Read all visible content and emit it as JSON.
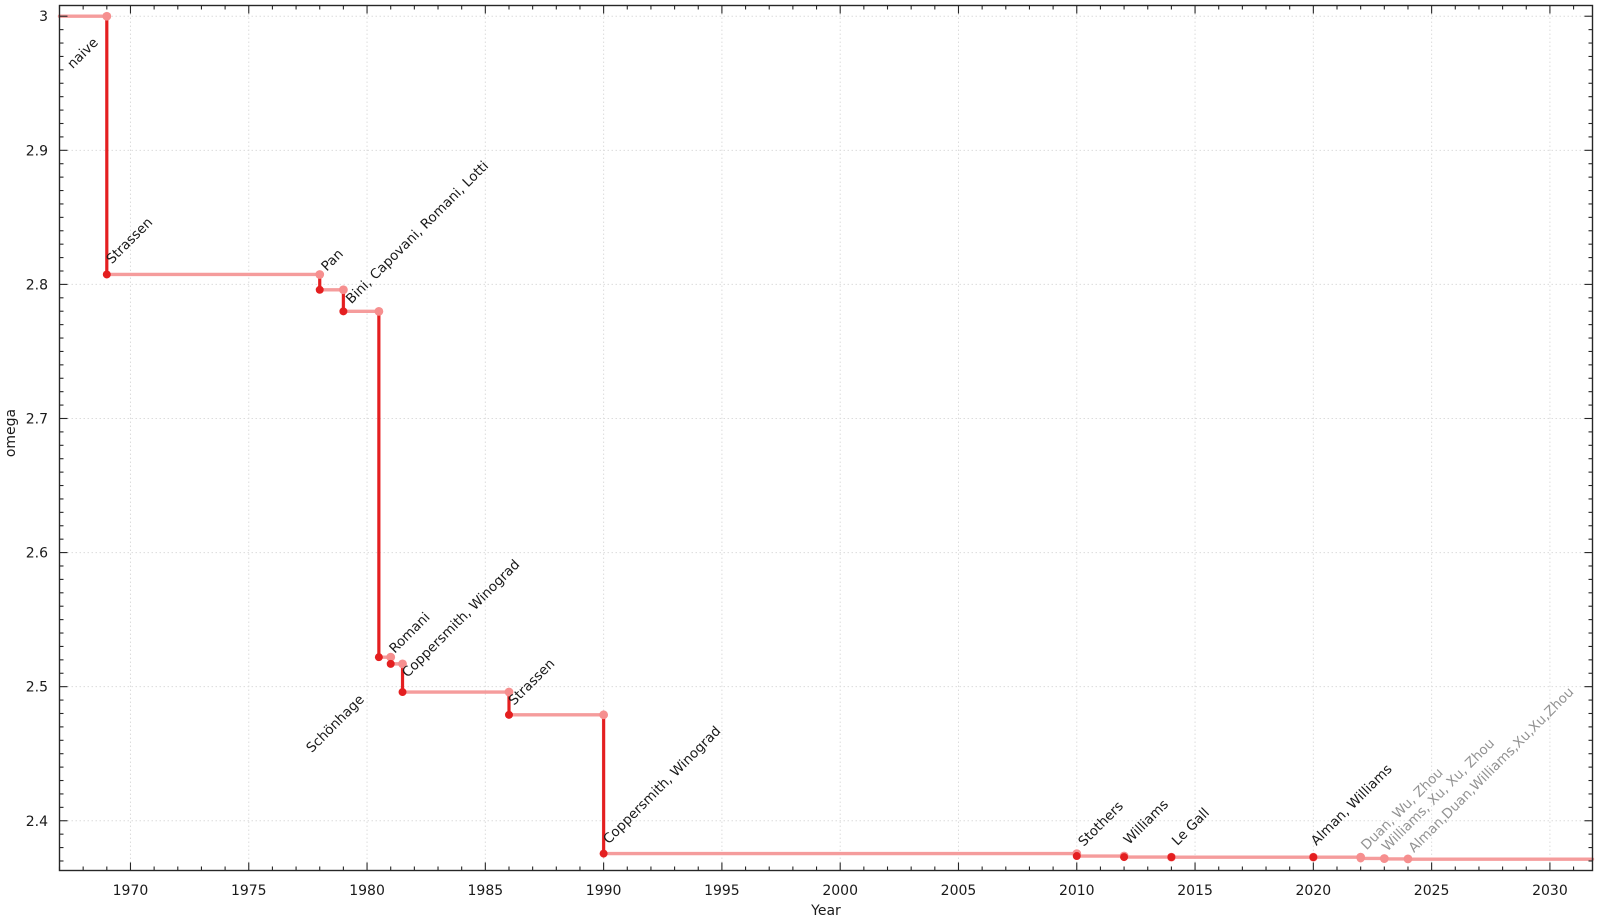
{
  "chart_data": {
    "type": "line",
    "subtype": "step-post",
    "title": "",
    "xlabel": "Year",
    "ylabel": "omega",
    "xlim": [
      1967.0,
      2031.8
    ],
    "ylim": [
      2.3629,
      3.008
    ],
    "grid": "major-dotted",
    "legend": "none",
    "x_major_ticks": [
      1970,
      1975,
      1980,
      1985,
      1990,
      1995,
      2000,
      2005,
      2010,
      2015,
      2020,
      2025,
      2030
    ],
    "x_tick_labels": [
      "1970",
      "1975",
      "1980",
      "1985",
      "1990",
      "1995",
      "2000",
      "2005",
      "2010",
      "2015",
      "2020",
      "2025",
      "2030"
    ],
    "x_minor_step": 1,
    "y_major_ticks": [
      2.4,
      2.5,
      2.6,
      2.7,
      2.8,
      2.9,
      3.0
    ],
    "y_tick_labels": [
      "2.4",
      "2.5",
      "2.6",
      "2.7",
      "2.8",
      "2.9",
      "3"
    ],
    "y_minor_step": 0.01,
    "initial": {
      "label": "naive",
      "omega": 3.0,
      "label_year": 1969
    },
    "events": [
      {
        "year": 1969,
        "omega": 2.8074,
        "label": "Strassen",
        "recent": false
      },
      {
        "year": 1978,
        "omega": 2.796,
        "label": "Pan",
        "recent": false
      },
      {
        "year": 1979,
        "omega": 2.7799,
        "label": "Bini, Capovani, Romani, Lotti",
        "recent": false
      },
      {
        "year": 1980.5,
        "omega": 2.522,
        "label": "Schönhage",
        "recent": false
      },
      {
        "year": 1981,
        "omega": 2.517,
        "label": "Romani",
        "recent": false
      },
      {
        "year": 1981.5,
        "omega": 2.496,
        "label": "Coppersmith, Winograd",
        "recent": false
      },
      {
        "year": 1986,
        "omega": 2.479,
        "label": "Strassen",
        "recent": false
      },
      {
        "year": 1990,
        "omega": 2.3755,
        "label": "Coppersmith, Winograd",
        "recent": false
      },
      {
        "year": 2010,
        "omega": 2.3737,
        "label": "Stothers",
        "recent": false
      },
      {
        "year": 2012,
        "omega": 2.3729,
        "label": "Williams",
        "recent": false
      },
      {
        "year": 2014,
        "omega": 2.3728639,
        "label": "Le Gall",
        "recent": false
      },
      {
        "year": 2020,
        "omega": 2.3728596,
        "label": "Alman, Williams",
        "recent": false
      },
      {
        "year": 2022,
        "omega": 2.371866,
        "label": "Duan, Wu, Zhou",
        "recent": true
      },
      {
        "year": 2023,
        "omega": 2.371552,
        "label": "Williams, Xu, Xu, Zhou",
        "recent": true
      },
      {
        "year": 2024,
        "omega": 2.371339,
        "label": "Alman,Duan,Williams,Xu,Xu,Zhou",
        "recent": true
      }
    ]
  },
  "colors": {
    "line_light": "#f59c9c",
    "line_dark": "#e41f20",
    "dot_light": "#f68f8f",
    "dot_dark": "#e41f20",
    "grid": "#dcdcdc",
    "axis": "#262626",
    "tick_label": "#1a1a1a",
    "annotation": "#1a1a1a",
    "annotation_recent": "#929292",
    "background": "#ffffff"
  }
}
